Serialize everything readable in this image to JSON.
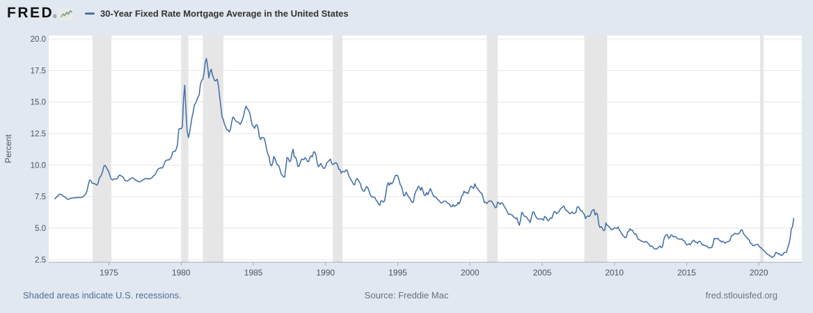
{
  "header": {
    "logo_text": "FRED",
    "logo_registered": "®",
    "legend_label": "30-Year Fixed Rate Mortgage Average in the United States"
  },
  "footer": {
    "note": "Shaded areas indicate U.S. recessions.",
    "source": "Source: Freddie Mac",
    "site": "fred.stlouisfed.org"
  },
  "chart_data": {
    "type": "line",
    "title": "30-Year Fixed Rate Mortgage Average in the United States",
    "xlabel": "",
    "ylabel": "Percent",
    "legend_position": "top",
    "grid": "horizontal",
    "x_ticks": [
      1975,
      1980,
      1985,
      1990,
      1995,
      2000,
      2005,
      2010,
      2015,
      2020
    ],
    "y_ticks": [
      2.5,
      5.0,
      7.5,
      10.0,
      12.5,
      15.0,
      17.5,
      20.0
    ],
    "x_range": [
      1970.83,
      2022.98
    ],
    "y_range": [
      2.3,
      20.28
    ],
    "recessions": [
      [
        1973.87,
        1975.17
      ],
      [
        1980.0,
        1980.5
      ],
      [
        1981.5,
        1982.92
      ],
      [
        1990.5,
        1991.17
      ],
      [
        2001.17,
        2001.92
      ],
      [
        2007.92,
        2009.5
      ],
      [
        2020.08,
        2020.33
      ]
    ],
    "colors": {
      "line": "#4572a7",
      "recession_band": "#e6e6e6",
      "grid": "#e6e6e6",
      "plot_bg": "#ffffff",
      "page_bg": "#e1e8f0",
      "axis": "#a3abb5",
      "tick_text": "#4d5359"
    },
    "series": [
      {
        "name": "30-Year Fixed Rate Mortgage Average in the United States",
        "units": "Percent",
        "frequency": "monthly",
        "start_year": 1971,
        "start_month": 4,
        "end_label": "2022-06",
        "values": [
          7.33,
          7.42,
          7.53,
          7.6,
          7.7,
          7.69,
          7.63,
          7.55,
          7.48,
          7.44,
          7.32,
          7.3,
          7.29,
          7.37,
          7.37,
          7.4,
          7.4,
          7.42,
          7.42,
          7.43,
          7.44,
          7.44,
          7.44,
          7.46,
          7.54,
          7.65,
          7.73,
          8.05,
          8.5,
          8.82,
          8.77,
          8.58,
          8.54,
          8.54,
          8.46,
          8.41,
          8.58,
          8.97,
          9.09,
          9.28,
          9.59,
          9.96,
          9.98,
          9.79,
          9.62,
          9.43,
          9.1,
          8.89,
          8.82,
          8.91,
          8.89,
          8.89,
          8.94,
          9.13,
          9.22,
          9.15,
          9.1,
          9.02,
          8.81,
          8.76,
          8.73,
          8.77,
          8.85,
          8.93,
          9.0,
          8.98,
          8.93,
          8.81,
          8.79,
          8.72,
          8.67,
          8.69,
          8.75,
          8.83,
          8.86,
          8.94,
          8.94,
          8.9,
          8.92,
          8.92,
          8.96,
          9.02,
          9.16,
          9.2,
          9.36,
          9.57,
          9.71,
          9.74,
          9.79,
          9.76,
          9.86,
          10.11,
          10.35,
          10.39,
          10.41,
          10.43,
          10.5,
          10.69,
          11.04,
          11.09,
          11.09,
          11.3,
          11.64,
          12.83,
          12.9,
          12.88,
          13.04,
          15.28,
          16.33,
          14.26,
          12.71,
          12.19,
          12.56,
          13.2,
          13.79,
          14.21,
          14.79,
          14.9,
          15.13,
          15.4,
          15.58,
          16.4,
          16.7,
          16.83,
          17.29,
          18.16,
          18.45,
          17.83,
          16.92,
          17.4,
          17.6,
          17.16,
          16.89,
          16.68,
          16.7,
          16.82,
          16.27,
          15.43,
          14.61,
          13.83,
          13.62,
          13.25,
          13.04,
          12.8,
          12.78,
          12.63,
          12.87,
          13.42,
          13.81,
          13.73,
          13.54,
          13.44,
          13.42,
          13.37,
          13.23,
          13.39,
          13.65,
          13.94,
          14.42,
          14.67,
          14.47,
          14.35,
          14.13,
          13.64,
          13.18,
          13.08,
          12.92,
          13.17,
          13.2,
          12.91,
          12.22,
          12.03,
          12.19,
          12.19,
          12.14,
          11.78,
          11.26,
          10.88,
          10.71,
          10.08,
          9.94,
          10.14,
          10.68,
          10.51,
          10.2,
          10.01,
          9.97,
          9.7,
          9.31,
          9.2,
          9.08,
          9.04,
          9.83,
          10.6,
          10.54,
          10.28,
          10.33,
          10.89,
          11.26,
          10.65,
          10.64,
          10.38,
          9.89,
          9.93,
          10.2,
          10.46,
          10.46,
          10.43,
          10.6,
          10.48,
          10.3,
          10.27,
          10.61,
          10.73,
          10.65,
          11.03,
          11.05,
          10.77,
          10.2,
          9.88,
          9.99,
          10.13,
          9.95,
          9.77,
          9.74,
          9.9,
          10.2,
          10.27,
          10.37,
          10.48,
          10.16,
          10.04,
          10.1,
          10.18,
          10.17,
          10.01,
          9.67,
          9.64,
          9.37,
          9.5,
          9.49,
          9.47,
          9.62,
          9.58,
          9.24,
          9.01,
          8.86,
          8.71,
          8.5,
          8.43,
          8.76,
          8.94,
          8.85,
          8.67,
          8.51,
          8.13,
          7.98,
          7.92,
          8.09,
          8.31,
          8.22,
          7.99,
          7.68,
          7.5,
          7.47,
          7.47,
          7.42,
          7.21,
          7.11,
          6.92,
          6.83,
          7.16,
          7.17,
          7.07,
          7.15,
          7.68,
          8.32,
          8.6,
          8.4,
          8.61,
          8.51,
          8.64,
          8.93,
          9.17,
          9.2,
          9.15,
          8.83,
          8.46,
          8.32,
          7.96,
          7.57,
          7.61,
          7.86,
          7.64,
          7.48,
          7.38,
          7.2,
          7.03,
          7.08,
          7.62,
          7.93,
          8.07,
          8.32,
          8.25,
          8.0,
          8.23,
          7.92,
          7.62,
          7.6,
          7.82,
          7.65,
          7.9,
          8.14,
          7.94,
          7.69,
          7.5,
          7.48,
          7.43,
          7.29,
          7.21,
          7.1,
          6.99,
          7.04,
          7.13,
          7.14,
          7.14,
          7.0,
          6.95,
          6.92,
          6.72,
          6.71,
          6.87,
          6.72,
          6.79,
          6.81,
          7.04,
          6.92,
          7.15,
          7.55,
          7.63,
          7.94,
          7.82,
          7.85,
          7.74,
          7.91,
          8.21,
          8.33,
          8.24,
          8.15,
          8.52,
          8.29,
          8.15,
          8.03,
          7.91,
          7.8,
          7.75,
          7.38,
          7.03,
          7.05,
          6.95,
          7.08,
          7.15,
          7.16,
          7.13,
          6.95,
          6.82,
          6.62,
          6.66,
          7.07,
          7.0,
          6.89,
          7.01,
          6.99,
          6.81,
          6.65,
          6.49,
          6.29,
          6.09,
          6.11,
          6.07,
          6.05,
          5.92,
          5.84,
          5.75,
          5.81,
          5.48,
          5.23,
          5.63,
          6.26,
          6.15,
          5.95,
          5.93,
          5.88,
          5.71,
          5.64,
          5.45,
          5.83,
          6.27,
          6.29,
          6.06,
          5.87,
          5.75,
          5.72,
          5.73,
          5.75,
          5.71,
          5.63,
          5.93,
          5.86,
          5.72,
          5.58,
          5.7,
          5.82,
          5.77,
          6.07,
          6.33,
          6.27,
          6.15,
          6.25,
          6.32,
          6.51,
          6.6,
          6.68,
          6.76,
          6.52,
          6.4,
          6.36,
          6.24,
          6.14,
          6.22,
          6.29,
          6.16,
          6.18,
          6.26,
          6.66,
          6.7,
          6.57,
          6.38,
          6.38,
          6.21,
          6.1,
          5.76,
          5.92,
          5.97,
          5.92,
          6.04,
          6.32,
          6.43,
          6.48,
          6.04,
          6.2,
          6.09,
          5.29,
          5.05,
          5.13,
          5.0,
          4.81,
          4.86,
          5.42,
          5.22,
          5.19,
          5.06,
          4.95,
          4.88,
          4.93,
          5.03,
          4.99,
          4.97,
          5.1,
          4.89,
          4.74,
          4.56,
          4.43,
          4.35,
          4.23,
          4.3,
          4.71,
          4.76,
          4.95,
          4.84,
          4.84,
          4.64,
          4.51,
          4.55,
          4.27,
          4.11,
          4.07,
          3.99,
          3.96,
          3.92,
          3.89,
          3.95,
          3.91,
          3.8,
          3.68,
          3.55,
          3.6,
          3.5,
          3.38,
          3.35,
          3.35,
          3.41,
          3.53,
          3.57,
          3.45,
          3.54,
          4.07,
          4.37,
          4.46,
          4.49,
          4.19,
          4.26,
          4.46,
          4.43,
          4.3,
          4.34,
          4.34,
          4.19,
          4.16,
          4.13,
          4.12,
          4.16,
          4.04,
          4.0,
          3.86,
          3.67,
          3.71,
          3.77,
          3.67,
          3.84,
          3.98,
          4.05,
          3.91,
          3.89,
          3.8,
          3.94,
          3.96,
          3.87,
          3.66,
          3.69,
          3.61,
          3.6,
          3.57,
          3.44,
          3.44,
          3.46,
          3.47,
          3.77,
          4.2,
          4.15,
          4.17,
          4.2,
          4.05,
          4.01,
          3.9,
          3.97,
          3.88,
          3.81,
          3.9,
          3.92,
          3.95,
          4.03,
          4.33,
          4.44,
          4.47,
          4.59,
          4.57,
          4.53,
          4.55,
          4.63,
          4.83,
          4.87,
          4.64,
          4.46,
          4.37,
          4.27,
          4.14,
          4.07,
          3.8,
          3.77,
          3.62,
          3.61,
          3.69,
          3.7,
          3.72,
          3.62,
          3.47,
          3.45,
          3.31,
          3.23,
          3.16,
          3.02,
          2.94,
          2.89,
          2.83,
          2.77,
          2.68,
          2.74,
          2.81,
          3.08,
          3.06,
          2.96,
          2.98,
          2.87,
          2.84,
          2.9,
          3.07,
          3.07,
          3.1,
          3.45,
          3.76,
          4.17,
          4.98,
          5.1,
          5.78
        ]
      }
    ]
  }
}
